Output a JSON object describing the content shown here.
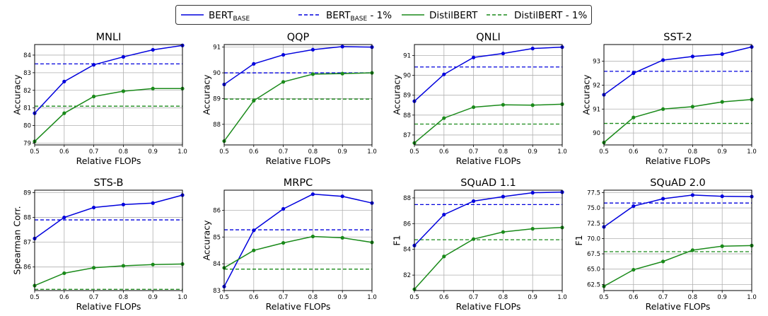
{
  "legend": {
    "placement": "top-center",
    "entries": [
      {
        "base": "BERT",
        "sub": "BASE",
        "suffix": "",
        "color": "#0000dd",
        "style": "solid"
      },
      {
        "base": "BERT",
        "sub": "BASE",
        "suffix": " - 1%",
        "color": "#0000dd",
        "style": "dashed"
      },
      {
        "base": "DistilBERT",
        "sub": "",
        "suffix": "",
        "color": "#1a8a1a",
        "style": "solid"
      },
      {
        "base": "DistilBERT - 1%",
        "sub": "",
        "suffix": "",
        "color": "#1a8a1a",
        "style": "dashed"
      }
    ]
  },
  "colors": {
    "bert": "#0000dd",
    "distil": "#1a8a1a",
    "grid": "#b0b0b0"
  },
  "chart_data": [
    {
      "type": "line",
      "title": "MNLI",
      "xlabel": "Relative FLOPs",
      "ylabel": "Accuracy",
      "x": [
        0.5,
        0.6,
        0.7,
        0.8,
        0.9,
        1.0
      ],
      "xlim": [
        0.5,
        1.0
      ],
      "xticks": [
        "0.5",
        "0.6",
        "0.7",
        "0.8",
        "0.9",
        "1.0"
      ],
      "ylim": [
        78.9,
        84.6
      ],
      "yticks": [
        "79",
        "80",
        "81",
        "82",
        "83",
        "84"
      ],
      "series": [
        {
          "values": [
            80.7,
            82.5,
            83.45,
            83.9,
            84.3,
            84.55
          ]
        },
        {
          "values": [
            79.1,
            80.7,
            81.65,
            81.95,
            82.1,
            82.1
          ]
        }
      ],
      "thresholds": [
        83.5,
        81.1
      ],
      "grid": true
    },
    {
      "type": "line",
      "title": "QQP",
      "xlabel": "Relative FLOPs",
      "ylabel": "Accuracy",
      "x": [
        0.5,
        0.6,
        0.7,
        0.8,
        0.9,
        1.0
      ],
      "xlim": [
        0.5,
        1.0
      ],
      "xticks": [
        "0.5",
        "0.6",
        "0.7",
        "0.8",
        "0.9",
        "1.0"
      ],
      "ylim": [
        87.2,
        91.1
      ],
      "yticks": [
        "88",
        "89",
        "90",
        "91"
      ],
      "series": [
        {
          "values": [
            89.55,
            90.35,
            90.7,
            90.9,
            91.02,
            91.0
          ]
        },
        {
          "values": [
            87.35,
            88.92,
            89.65,
            89.95,
            89.97,
            90.0
          ]
        }
      ],
      "thresholds": [
        90.0,
        88.98
      ],
      "grid": true
    },
    {
      "type": "line",
      "title": "QNLI",
      "xlabel": "Relative FLOPs",
      "ylabel": "Accuracy",
      "x": [
        0.5,
        0.6,
        0.7,
        0.8,
        0.9,
        1.0
      ],
      "xlim": [
        0.5,
        1.0
      ],
      "xticks": [
        "0.5",
        "0.6",
        "0.7",
        "0.8",
        "0.9",
        "1.0"
      ],
      "ylim": [
        86.5,
        91.55
      ],
      "yticks": [
        "87",
        "88",
        "89",
        "90",
        "91"
      ],
      "series": [
        {
          "values": [
            88.7,
            90.05,
            90.9,
            91.1,
            91.35,
            91.42
          ]
        },
        {
          "values": [
            86.6,
            87.85,
            88.4,
            88.52,
            88.5,
            88.55
          ]
        }
      ],
      "thresholds": [
        90.42,
        87.55
      ],
      "grid": true
    },
    {
      "type": "line",
      "title": "SST-2",
      "xlabel": "Relative FLOPs",
      "ylabel": "Accuracy",
      "x": [
        0.5,
        0.6,
        0.7,
        0.8,
        0.9,
        1.0
      ],
      "xlim": [
        0.5,
        1.0
      ],
      "xticks": [
        "0.5",
        "0.6",
        "0.7",
        "0.8",
        "0.9",
        "1.0"
      ],
      "ylim": [
        89.5,
        93.7
      ],
      "yticks": [
        "90",
        "91",
        "92",
        "93"
      ],
      "series": [
        {
          "values": [
            91.6,
            92.5,
            93.05,
            93.2,
            93.3,
            93.6
          ]
        },
        {
          "values": [
            89.6,
            90.65,
            91.0,
            91.1,
            91.3,
            91.4
          ]
        }
      ],
      "thresholds": [
        92.58,
        90.4
      ],
      "grid": true
    },
    {
      "type": "line",
      "title": "STS-B",
      "xlabel": "Relative FLOPs",
      "ylabel": "Spearman Corr.",
      "x": [
        0.5,
        0.6,
        0.7,
        0.8,
        0.9,
        1.0
      ],
      "xlim": [
        0.5,
        1.0
      ],
      "xticks": [
        "0.5",
        "0.6",
        "0.7",
        "0.8",
        "0.9",
        "1.0"
      ],
      "ylim": [
        85.05,
        89.1
      ],
      "yticks": [
        "86",
        "87",
        "88",
        "89"
      ],
      "series": [
        {
          "values": [
            87.15,
            88.0,
            88.4,
            88.52,
            88.58,
            88.9
          ]
        },
        {
          "values": [
            85.25,
            85.75,
            85.97,
            86.05,
            86.1,
            86.12
          ]
        }
      ],
      "thresholds": [
        87.9,
        85.1
      ],
      "grid": true
    },
    {
      "type": "line",
      "title": "MRPC",
      "xlabel": "Relative FLOPs",
      "ylabel": "Accuracy",
      "x": [
        0.5,
        0.6,
        0.7,
        0.8,
        0.9,
        1.0
      ],
      "xlim": [
        0.5,
        1.0
      ],
      "xticks": [
        "0.5",
        "0.6",
        "0.7",
        "0.8",
        "0.9",
        "1.0"
      ],
      "ylim": [
        83.0,
        86.75
      ],
      "yticks": [
        "83",
        "84",
        "85",
        "86"
      ],
      "series": [
        {
          "values": [
            83.15,
            85.25,
            86.05,
            86.6,
            86.52,
            86.27
          ]
        },
        {
          "values": [
            83.85,
            84.5,
            84.78,
            85.02,
            84.97,
            84.8
          ]
        }
      ],
      "thresholds": [
        85.27,
        83.8
      ],
      "grid": true
    },
    {
      "type": "line",
      "title": "SQuAD 1.1",
      "xlabel": "Relative FLOPs",
      "ylabel": "F1",
      "x": [
        0.5,
        0.6,
        0.7,
        0.8,
        0.9,
        1.0
      ],
      "xlim": [
        0.5,
        1.0
      ],
      "xticks": [
        "0.5",
        "0.6",
        "0.7",
        "0.8",
        "0.9",
        "1.0"
      ],
      "ylim": [
        80.8,
        88.6
      ],
      "yticks": [
        "82",
        "84",
        "86",
        "88"
      ],
      "series": [
        {
          "values": [
            84.3,
            86.7,
            87.75,
            88.1,
            88.4,
            88.45
          ]
        },
        {
          "values": [
            80.9,
            83.45,
            84.8,
            85.35,
            85.6,
            85.7
          ]
        }
      ],
      "thresholds": [
        87.48,
        84.75
      ],
      "grid": true
    },
    {
      "type": "line",
      "title": "SQuAD 2.0",
      "xlabel": "Relative FLOPs",
      "ylabel": "F1",
      "x": [
        0.5,
        0.6,
        0.7,
        0.8,
        0.9,
        1.0
      ],
      "xlim": [
        0.5,
        1.0
      ],
      "xticks": [
        "0.5",
        "0.6",
        "0.7",
        "0.8",
        "0.9",
        "1.0"
      ],
      "ylim": [
        61.5,
        77.9
      ],
      "yticks": [
        "62.5",
        "65.0",
        "67.5",
        "70.0",
        "72.5",
        "75.0",
        "77.5"
      ],
      "series": [
        {
          "values": [
            71.9,
            75.3,
            76.5,
            77.1,
            76.9,
            76.85
          ]
        },
        {
          "values": [
            62.2,
            64.9,
            66.25,
            68.1,
            68.75,
            68.85
          ]
        }
      ],
      "thresholds": [
        75.8,
        67.85
      ],
      "grid": true
    }
  ]
}
